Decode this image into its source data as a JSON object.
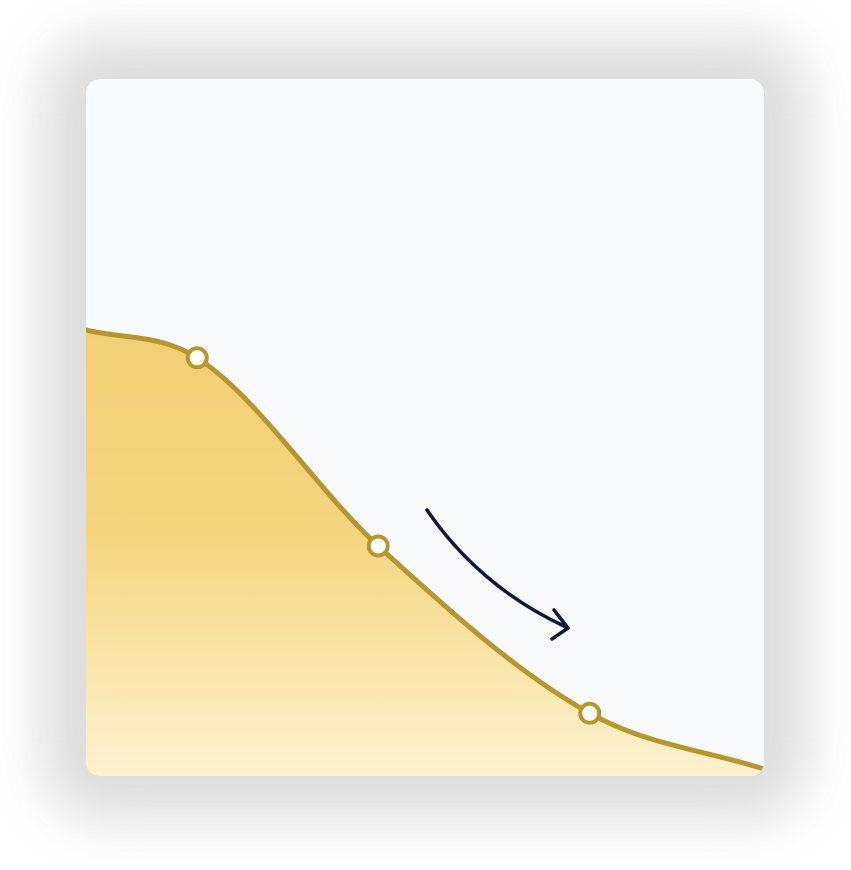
{
  "chart_data": {
    "type": "area",
    "title": "",
    "xlabel": "",
    "ylabel": "",
    "x": [
      0,
      0.164,
      0.431,
      0.743,
      1.0
    ],
    "series": [
      {
        "values": [
          0.64,
          0.6,
          0.33,
          0.09,
          0.01
        ],
        "marked_points": [
          1,
          2,
          3
        ]
      }
    ],
    "xlim": [
      0,
      1
    ],
    "ylim": [
      0,
      1
    ],
    "grid": false,
    "legend": "none",
    "annotation": {
      "kind": "arrow",
      "direction": "down-right"
    }
  },
  "colors": {
    "card_background": "#f8fafc",
    "line": "#b8962e",
    "fill_top": "#f3cf74",
    "fill_mid": "#f5d57f",
    "fill_bottom": "#fbf2cf",
    "marker_fill": "#ffffff",
    "arrow": "#12163a",
    "shadow": "#d9d9d9"
  },
  "icons": {
    "annotation_arrow": "curved-arrow-icon"
  }
}
